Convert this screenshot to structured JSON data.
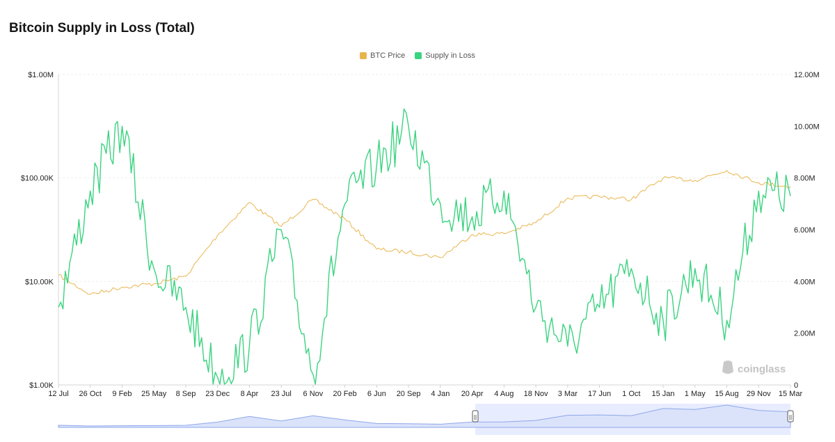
{
  "header": {
    "title": "Bitcoin Supply in Loss (Total)"
  },
  "watermark": "coinglass",
  "chart_data": {
    "type": "line",
    "title": "Bitcoin Supply in Loss (Total)",
    "legend_position": "top-center",
    "grid": true,
    "x_ticks": [
      "12 Jul",
      "26 Oct",
      "9 Feb",
      "25 May",
      "8 Sep",
      "23 Dec",
      "8 Apr",
      "23 Jul",
      "6 Nov",
      "20 Feb",
      "6 Jun",
      "20 Sep",
      "4 Jan",
      "20 Apr",
      "4 Aug",
      "18 Nov",
      "3 Mar",
      "17 Jun",
      "1 Oct",
      "15 Jan",
      "1 May",
      "15 Aug",
      "29 Nov",
      "15 Mar"
    ],
    "y_left": {
      "scale": "log",
      "range": [
        1000,
        1000000
      ],
      "ticks": [
        "$1.00K",
        "$10.00K",
        "$100.00K",
        "$1.00M"
      ]
    },
    "y_right": {
      "scale": "linear",
      "range": [
        0,
        12000000
      ],
      "ticks": [
        "0",
        "2.00M",
        "4.00M",
        "6.00M",
        "8.00M",
        "10.00M",
        "12.00M"
      ]
    },
    "series": [
      {
        "name": "BTC Price",
        "axis": "left",
        "color": "#e8b54d",
        "x": [
          "12 Jul",
          "26 Oct",
          "9 Feb",
          "25 May",
          "8 Sep",
          "23 Dec",
          "8 Apr",
          "23 Jul",
          "6 Nov",
          "20 Feb",
          "6 Jun",
          "20 Sep",
          "4 Jan",
          "20 Apr",
          "4 Aug",
          "18 Nov",
          "3 Mar",
          "17 Jun",
          "1 Oct",
          "15 Jan",
          "1 May",
          "15 Aug",
          "29 Nov",
          "15 Mar"
        ],
        "values": [
          11500,
          7500,
          8800,
          9500,
          11200,
          28000,
          58000,
          34000,
          62000,
          40000,
          20500,
          19200,
          17000,
          28500,
          29000,
          37000,
          64000,
          66000,
          62000,
          100000,
          95000,
          118000,
          90000,
          82000
        ]
      },
      {
        "name": "Supply in Loss",
        "axis": "right",
        "color": "#3ad37f",
        "x": [
          "12 Jul",
          "26 Oct",
          "9 Feb",
          "25 May",
          "8 Sep",
          "23 Dec",
          "8 Apr",
          "23 Jul",
          "6 Nov",
          "20 Feb",
          "6 Jun",
          "20 Sep",
          "4 Jan",
          "20 Apr",
          "4 Aug",
          "18 Nov",
          "3 Mar",
          "17 Jun",
          "1 Oct",
          "15 Jan",
          "1 May",
          "15 Aug",
          "29 Nov",
          "15 Mar"
        ],
        "values": [
          3000000,
          7500000,
          10000000,
          4500000,
          3000000,
          300000,
          1500000,
          6000000,
          400000,
          7000000,
          8500000,
          10000000,
          7000000,
          6500000,
          7500000,
          3000000,
          1500000,
          3000000,
          4500000,
          2500000,
          4500000,
          2500000,
          7500000,
          7300000
        ]
      }
    ]
  },
  "navigator": {
    "handle_left": "||",
    "handle_right": "||"
  }
}
